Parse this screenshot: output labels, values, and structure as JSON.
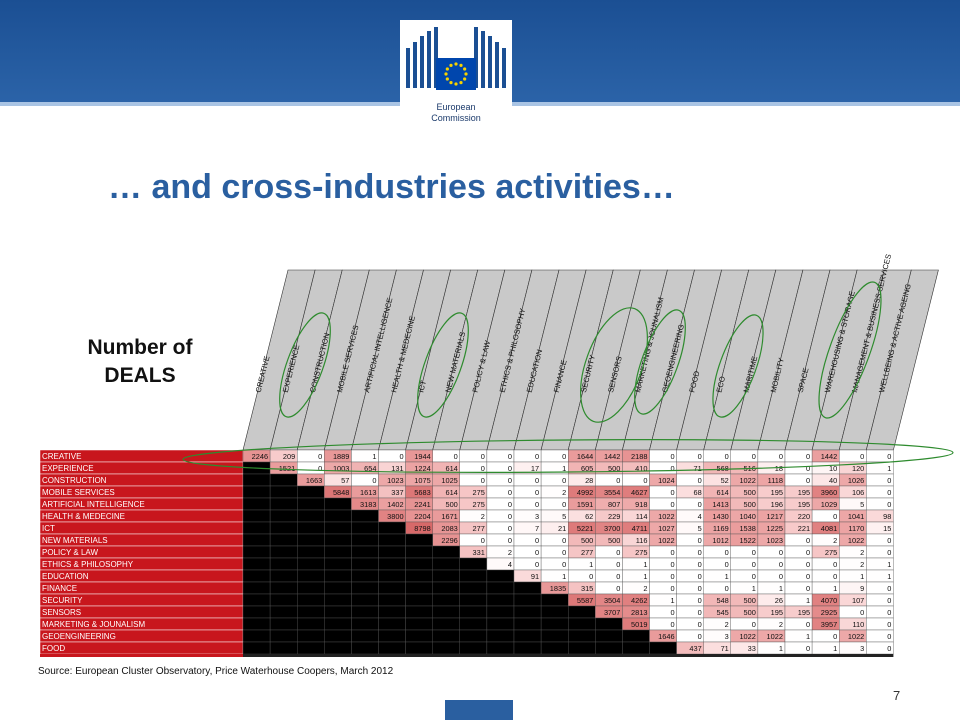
{
  "slide": {
    "title": "… and cross-industries activities…",
    "axis_title_line1": "Number of",
    "axis_title_line2": "DEALS",
    "source": "Source: European Cluster Observatory, Price Waterhouse Coopers, March 2012",
    "page_number": "7",
    "logo_text_line1": "European",
    "logo_text_line2": "Commission"
  },
  "colors": {
    "banner": "#1b4f93",
    "title": "#2a5fa0",
    "row_header": "#c8161d",
    "ellipse": "#2e8b2e",
    "lower_triangle": "#000000",
    "eu_star": "#f6d200",
    "eu_flag": "#0046ad"
  },
  "chart_data": {
    "type": "table",
    "columns": [
      "CREATIVE",
      "EXPERIENCE",
      "CONSTRUCTION",
      "MOBILE SERVICES",
      "ARTIFICIAL INTELLIGENCE",
      "HEALTH & MEDECINE",
      "ICT",
      "NEW MATERIALS",
      "POLICY & LAW",
      "ETHICS & PHILOSOPHY",
      "EDUCATION",
      "FINANCE",
      "SECURITY",
      "SENSORS",
      "MARKETING & JOUNALISM",
      "GEOENGINEERING",
      "FOOD",
      "ECO",
      "MARITIME",
      "MOBILITY",
      "SPACE",
      "WAREHOUSING & STORAGE",
      "MANAGEMENT & BUSINESS SERVICES",
      "WELLBEING & ACTIVE AGEING"
    ],
    "rows": [
      {
        "label": "CREATIVE",
        "values": [
          2246,
          209,
          0,
          1889,
          1,
          0,
          1944,
          0,
          0,
          0,
          0,
          0,
          1644,
          1442,
          2188,
          0,
          0,
          0,
          0,
          0,
          0,
          1442,
          0,
          0
        ]
      },
      {
        "label": "EXPERIENCE",
        "values": [
          null,
          1521,
          0,
          1003,
          654,
          131,
          1224,
          614,
          0,
          0,
          17,
          1,
          605,
          500,
          410,
          0,
          71,
          568,
          516,
          18,
          0,
          10,
          120,
          1
        ]
      },
      {
        "label": "CONSTRUCTION",
        "values": [
          null,
          null,
          1663,
          57,
          0,
          1023,
          1075,
          1025,
          0,
          0,
          0,
          0,
          28,
          0,
          0,
          1024,
          0,
          52,
          1022,
          1118,
          0,
          40,
          1026,
          0
        ]
      },
      {
        "label": "MOBILE SERVICES",
        "values": [
          null,
          null,
          null,
          5848,
          1613,
          337,
          5683,
          614,
          275,
          0,
          0,
          2,
          4992,
          3554,
          4627,
          0,
          68,
          614,
          500,
          195,
          195,
          3960,
          106,
          0
        ]
      },
      {
        "label": "ARTIFICIAL INTELLIGENCE",
        "values": [
          null,
          null,
          null,
          null,
          3183,
          1402,
          2241,
          500,
          275,
          0,
          0,
          0,
          1591,
          807,
          918,
          0,
          0,
          1413,
          500,
          196,
          195,
          1029,
          5,
          0
        ]
      },
      {
        "label": "HEALTH & MEDECINE",
        "values": [
          null,
          null,
          null,
          null,
          null,
          3800,
          2204,
          1671,
          2,
          0,
          3,
          5,
          62,
          229,
          114,
          1022,
          4,
          1430,
          1040,
          1217,
          220,
          0,
          1041,
          98
        ]
      },
      {
        "label": "ICT",
        "values": [
          null,
          null,
          null,
          null,
          null,
          null,
          8798,
          2083,
          277,
          0,
          7,
          21,
          5221,
          3700,
          4711,
          1027,
          5,
          1169,
          1538,
          1225,
          221,
          4081,
          1170,
          15
        ]
      },
      {
        "label": "NEW MATERIALS",
        "values": [
          null,
          null,
          null,
          null,
          null,
          null,
          null,
          2296,
          0,
          0,
          0,
          0,
          500,
          500,
          116,
          1022,
          0,
          1012,
          1522,
          1023,
          0,
          2,
          1022,
          0
        ]
      },
      {
        "label": "POLICY & LAW",
        "values": [
          null,
          null,
          null,
          null,
          null,
          null,
          null,
          null,
          331,
          2,
          0,
          0,
          277,
          0,
          275,
          0,
          0,
          0,
          0,
          0,
          0,
          275,
          2,
          0
        ]
      },
      {
        "label": "ETHICS & PHILOSOPHY",
        "values": [
          null,
          null,
          null,
          null,
          null,
          null,
          null,
          null,
          null,
          4,
          0,
          0,
          1,
          0,
          1,
          0,
          0,
          0,
          0,
          0,
          0,
          0,
          2,
          1
        ]
      },
      {
        "label": "EDUCATION",
        "values": [
          null,
          null,
          null,
          null,
          null,
          null,
          null,
          null,
          null,
          null,
          91,
          1,
          0,
          0,
          1,
          0,
          0,
          1,
          0,
          0,
          0,
          0,
          1,
          1
        ]
      },
      {
        "label": "FINANCE",
        "values": [
          null,
          null,
          null,
          null,
          null,
          null,
          null,
          null,
          null,
          null,
          null,
          1835,
          315,
          0,
          2,
          0,
          0,
          0,
          1,
          1,
          0,
          1,
          9,
          0
        ]
      },
      {
        "label": "SECURITY",
        "values": [
          null,
          null,
          null,
          null,
          null,
          null,
          null,
          null,
          null,
          null,
          null,
          null,
          5587,
          3504,
          4262,
          1,
          0,
          548,
          500,
          26,
          1,
          4070,
          107,
          0
        ]
      },
      {
        "label": "SENSORS",
        "values": [
          null,
          null,
          null,
          null,
          null,
          null,
          null,
          null,
          null,
          null,
          null,
          null,
          null,
          3707,
          2813,
          0,
          0,
          545,
          500,
          195,
          195,
          2925,
          0,
          0
        ]
      },
      {
        "label": "MARKETING & JOUNALISM",
        "values": [
          null,
          null,
          null,
          null,
          null,
          null,
          null,
          null,
          null,
          null,
          null,
          null,
          null,
          null,
          5019,
          0,
          0,
          2,
          0,
          2,
          0,
          3957,
          110,
          0
        ]
      },
      {
        "label": "GEOENGINEERING",
        "values": [
          null,
          null,
          null,
          null,
          null,
          null,
          null,
          null,
          null,
          null,
          null,
          null,
          null,
          null,
          null,
          1646,
          0,
          3,
          1022,
          1022,
          1,
          0,
          1022,
          0
        ]
      },
      {
        "label": "FOOD",
        "values": [
          null,
          null,
          null,
          null,
          null,
          null,
          null,
          null,
          null,
          null,
          null,
          null,
          null,
          null,
          null,
          null,
          437,
          71,
          33,
          1,
          0,
          1,
          3,
          0
        ]
      }
    ]
  }
}
